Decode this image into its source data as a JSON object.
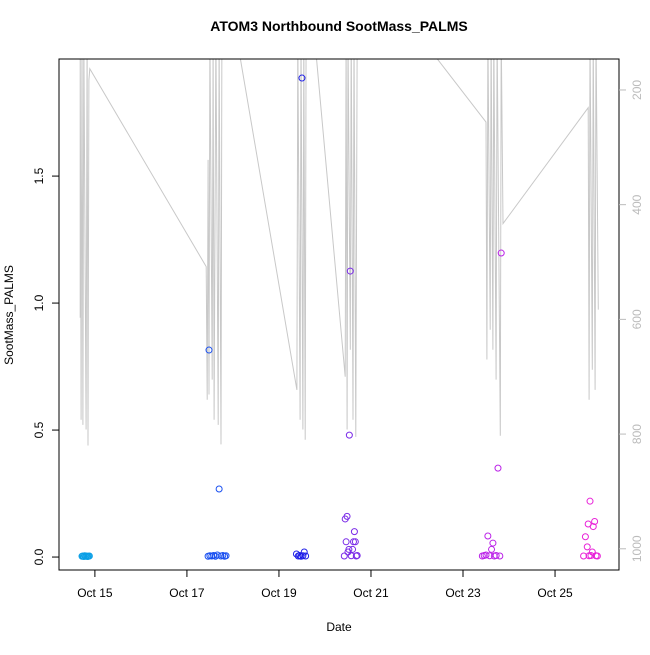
{
  "chart_data": {
    "type": "scatter",
    "title": "ATOM3 Northbound SootMass_PALMS",
    "x_label": "Date",
    "y_label": "SootMass_PALMS",
    "xlim": [
      14.22,
      26.39
    ],
    "ylim": [
      -0.051,
      1.961
    ],
    "y2lim": [
      1037,
      146
    ],
    "xticks": [
      {
        "value": 15,
        "label": "Oct 15"
      },
      {
        "value": 17,
        "label": "Oct 17"
      },
      {
        "value": 19,
        "label": "Oct 19"
      },
      {
        "value": 21,
        "label": "Oct 21"
      },
      {
        "value": 23,
        "label": "Oct 23"
      },
      {
        "value": 25,
        "label": "Oct 25"
      }
    ],
    "yticks": [
      {
        "value": 0,
        "label": "0.0"
      },
      {
        "value": 0.5,
        "label": "0.5"
      },
      {
        "value": 1,
        "label": "1.0"
      },
      {
        "value": 1.5,
        "label": "1.5"
      }
    ],
    "y2ticks": [
      200,
      400,
      600,
      800,
      1000
    ],
    "y2_color": "#bbbbbb",
    "grid": false,
    "series": [
      {
        "color": "#0a9fe6",
        "x": [
          14.72,
          14.74,
          14.76,
          14.78,
          14.8,
          14.82,
          14.84,
          14.86,
          14.88
        ],
        "values": [
          0.003,
          0.004,
          0.002,
          0.005,
          0.003,
          0.004,
          0.002,
          0.003,
          0.004
        ]
      },
      {
        "color": "#1a50f0",
        "x": [
          17.46,
          17.48,
          17.5,
          17.54,
          17.58,
          17.62,
          17.66,
          17.7,
          17.74,
          17.78,
          17.82,
          17.85
        ],
        "values": [
          0.003,
          0.815,
          0.005,
          0.004,
          0.006,
          0.003,
          0.008,
          0.268,
          0.004,
          0.006,
          0.003,
          0.005
        ]
      },
      {
        "color": "#1e1ee8",
        "x": [
          19.38,
          19.42,
          19.45,
          19.48,
          19.5,
          19.52,
          19.55,
          19.58
        ],
        "values": [
          0.012,
          0.004,
          0.006,
          0.003,
          1.886,
          0.005,
          0.02,
          0.004
        ]
      },
      {
        "color": "#7a2ae8",
        "x": [
          20.42,
          20.44,
          20.46,
          20.48,
          20.5,
          20.52,
          20.53,
          20.55,
          20.57,
          20.6,
          20.62,
          20.64,
          20.66,
          20.68,
          20.7
        ],
        "values": [
          0.004,
          0.15,
          0.06,
          0.16,
          0.02,
          0.03,
          0.48,
          1.126,
          0.005,
          0.03,
          0.06,
          0.1,
          0.06,
          0.004,
          0.006
        ]
      },
      {
        "color": "#bb22e8",
        "x": [
          23.42,
          23.46,
          23.5,
          23.54,
          23.58,
          23.62,
          23.65,
          23.68,
          23.72,
          23.76,
          23.8,
          23.83
        ],
        "values": [
          0.004,
          0.006,
          0.008,
          0.083,
          0.005,
          0.03,
          0.055,
          0.004,
          0.006,
          0.35,
          0.004,
          1.197
        ]
      },
      {
        "color": "#e822d8",
        "x": [
          25.62,
          25.66,
          25.7,
          25.72,
          25.74,
          25.76,
          25.78,
          25.81,
          25.83,
          25.86,
          25.89,
          25.92
        ],
        "values": [
          0.004,
          0.08,
          0.04,
          0.13,
          0.005,
          0.22,
          0.006,
          0.02,
          0.12,
          0.14,
          0.005,
          0.004
        ]
      },
      {
        "type": "line",
        "axis": "y2",
        "color": "#c8c8c8",
        "x": [
          14.68,
          14.68,
          14.7,
          14.72,
          14.74,
          14.76,
          14.81,
          14.83,
          14.85,
          14.87,
          14.89,
          17.42,
          17.44,
          17.46,
          17.48,
          17.5,
          17.55,
          17.57,
          17.59,
          17.63,
          17.68,
          17.7,
          17.74,
          17.76,
          17.98,
          19.39,
          19.41,
          19.46,
          19.48,
          19.52,
          19.54,
          19.57,
          19.59,
          19.72,
          20.44,
          20.46,
          20.48,
          20.5,
          20.55,
          20.57,
          20.61,
          20.63,
          20.67,
          20.7,
          22.0,
          23.5,
          23.52,
          23.54,
          23.59,
          23.61,
          23.65,
          23.67,
          23.72,
          23.74,
          23.81,
          23.83,
          23.87,
          25.72,
          25.74,
          25.76,
          25.81,
          25.83,
          25.87,
          25.89,
          25.94
        ],
        "values": [
          597,
          100,
          775,
          100,
          784,
          100,
          792,
          100,
          820,
          183,
          163,
          508,
          740,
          322,
          731,
          100,
          705,
          100,
          775,
          100,
          784,
          100,
          818,
          100,
          60,
          723,
          100,
          775,
          100,
          792,
          100,
          810,
          100,
          60,
          700,
          100,
          792,
          100,
          653,
          100,
          775,
          100,
          805,
          100,
          100,
          256,
          670,
          100,
          618,
          100,
          653,
          100,
          705,
          100,
          803,
          100,
          433,
          231,
          740,
          100,
          688,
          100,
          723,
          100,
          583
        ]
      }
    ]
  }
}
